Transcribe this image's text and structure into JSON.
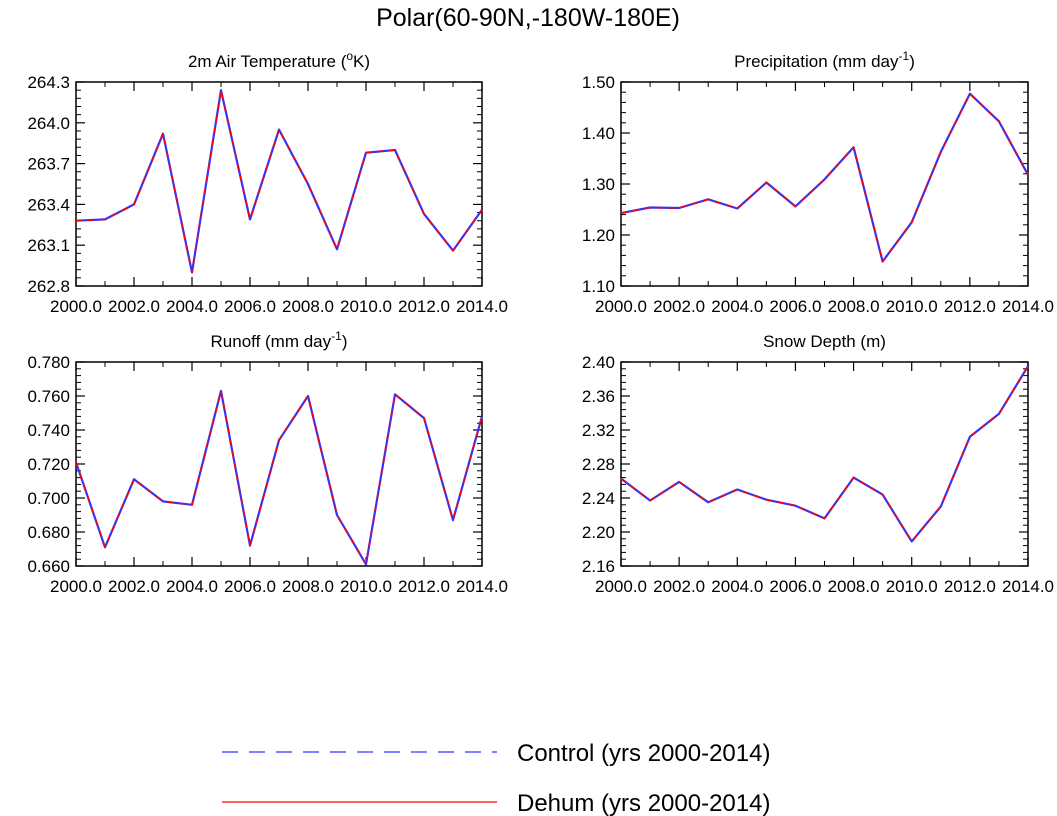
{
  "title": "Polar(60-90N,-180W-180E)",
  "colors": {
    "control": "#3333ff",
    "dehum": "#ff0000",
    "axis": "#000000"
  },
  "legend": {
    "control": {
      "label": "Control (yrs 2000-2014)",
      "style": "dashed"
    },
    "dehum": {
      "label": "Dehum (yrs 2000-2014)",
      "style": "solid"
    }
  },
  "chart_data": [
    {
      "type": "line",
      "title": "2m Air Temperature (",
      "title_sup": "o",
      "title_after": "K)",
      "x": [
        2000,
        2001,
        2002,
        2003,
        2004,
        2005,
        2006,
        2007,
        2008,
        2009,
        2010,
        2011,
        2012,
        2013,
        2014
      ],
      "xlim": [
        2000,
        2014
      ],
      "xticks": [
        "2000.0",
        "2002.0",
        "2004.0",
        "2006.0",
        "2008.0",
        "2010.0",
        "2012.0",
        "2014.0"
      ],
      "ylim": [
        262.8,
        264.3
      ],
      "yticks": [
        "262.8",
        "263.1",
        "263.4",
        "263.7",
        "264.0",
        "264.3"
      ],
      "series": [
        {
          "name": "Control (yrs 2000-2014)",
          "values": [
            263.28,
            263.29,
            263.4,
            263.92,
            262.9,
            264.24,
            263.29,
            263.95,
            263.55,
            263.07,
            263.78,
            263.8,
            263.33,
            263.06,
            263.36
          ]
        },
        {
          "name": "Dehum (yrs 2000-2014)",
          "values": [
            263.28,
            263.29,
            263.4,
            263.92,
            262.9,
            264.24,
            263.29,
            263.95,
            263.55,
            263.07,
            263.78,
            263.8,
            263.33,
            263.06,
            263.36
          ]
        }
      ]
    },
    {
      "type": "line",
      "title": "Precipitation (mm day",
      "title_sup": "-1",
      "title_after": ")",
      "x": [
        2000,
        2001,
        2002,
        2003,
        2004,
        2005,
        2006,
        2007,
        2008,
        2009,
        2010,
        2011,
        2012,
        2013,
        2014
      ],
      "xlim": [
        2000,
        2014
      ],
      "xticks": [
        "2000.0",
        "2002.0",
        "2004.0",
        "2006.0",
        "2008.0",
        "2010.0",
        "2012.0",
        "2014.0"
      ],
      "ylim": [
        1.1,
        1.5
      ],
      "yticks": [
        "1.10",
        "1.20",
        "1.30",
        "1.40",
        "1.50"
      ],
      "series": [
        {
          "name": "Control (yrs 2000-2014)",
          "values": [
            1.243,
            1.254,
            1.253,
            1.27,
            1.252,
            1.303,
            1.256,
            1.309,
            1.372,
            1.148,
            1.225,
            1.363,
            1.477,
            1.423,
            1.318
          ]
        },
        {
          "name": "Dehum (yrs 2000-2014)",
          "values": [
            1.243,
            1.254,
            1.253,
            1.27,
            1.252,
            1.303,
            1.256,
            1.309,
            1.372,
            1.148,
            1.225,
            1.363,
            1.477,
            1.423,
            1.318
          ]
        }
      ]
    },
    {
      "type": "line",
      "title": "Runoff (mm day",
      "title_sup": "-1",
      "title_after": ")",
      "x": [
        2000,
        2001,
        2002,
        2003,
        2004,
        2005,
        2006,
        2007,
        2008,
        2009,
        2010,
        2011,
        2012,
        2013,
        2014
      ],
      "xlim": [
        2000,
        2014
      ],
      "xticks": [
        "2000.0",
        "2002.0",
        "2004.0",
        "2006.0",
        "2008.0",
        "2010.0",
        "2012.0",
        "2014.0"
      ],
      "ylim": [
        0.66,
        0.78
      ],
      "yticks": [
        "0.660",
        "0.680",
        "0.700",
        "0.720",
        "0.740",
        "0.760",
        "0.780"
      ],
      "series": [
        {
          "name": "Control (yrs 2000-2014)",
          "values": [
            0.721,
            0.671,
            0.711,
            0.698,
            0.696,
            0.763,
            0.672,
            0.734,
            0.76,
            0.69,
            0.661,
            0.761,
            0.747,
            0.687,
            0.748
          ]
        },
        {
          "name": "Dehum (yrs 2000-2014)",
          "values": [
            0.721,
            0.671,
            0.711,
            0.698,
            0.696,
            0.763,
            0.672,
            0.734,
            0.76,
            0.69,
            0.661,
            0.761,
            0.747,
            0.687,
            0.748
          ]
        }
      ]
    },
    {
      "type": "line",
      "title": "Snow Depth (m)",
      "title_sup": "",
      "title_after": "",
      "x": [
        2000,
        2001,
        2002,
        2003,
        2004,
        2005,
        2006,
        2007,
        2008,
        2009,
        2010,
        2011,
        2012,
        2013,
        2014
      ],
      "xlim": [
        2000,
        2014
      ],
      "xticks": [
        "2000.0",
        "2002.0",
        "2004.0",
        "2006.0",
        "2008.0",
        "2010.0",
        "2012.0",
        "2014.0"
      ],
      "ylim": [
        2.16,
        2.4
      ],
      "yticks": [
        "2.16",
        "2.20",
        "2.24",
        "2.28",
        "2.32",
        "2.36",
        "2.40"
      ],
      "series": [
        {
          "name": "Control (yrs 2000-2014)",
          "values": [
            2.263,
            2.237,
            2.259,
            2.235,
            2.25,
            2.238,
            2.231,
            2.216,
            2.264,
            2.244,
            2.189,
            2.23,
            2.312,
            2.339,
            2.395
          ]
        },
        {
          "name": "Dehum (yrs 2000-2014)",
          "values": [
            2.263,
            2.237,
            2.259,
            2.235,
            2.25,
            2.238,
            2.231,
            2.216,
            2.264,
            2.244,
            2.189,
            2.23,
            2.312,
            2.339,
            2.395
          ]
        }
      ]
    }
  ]
}
